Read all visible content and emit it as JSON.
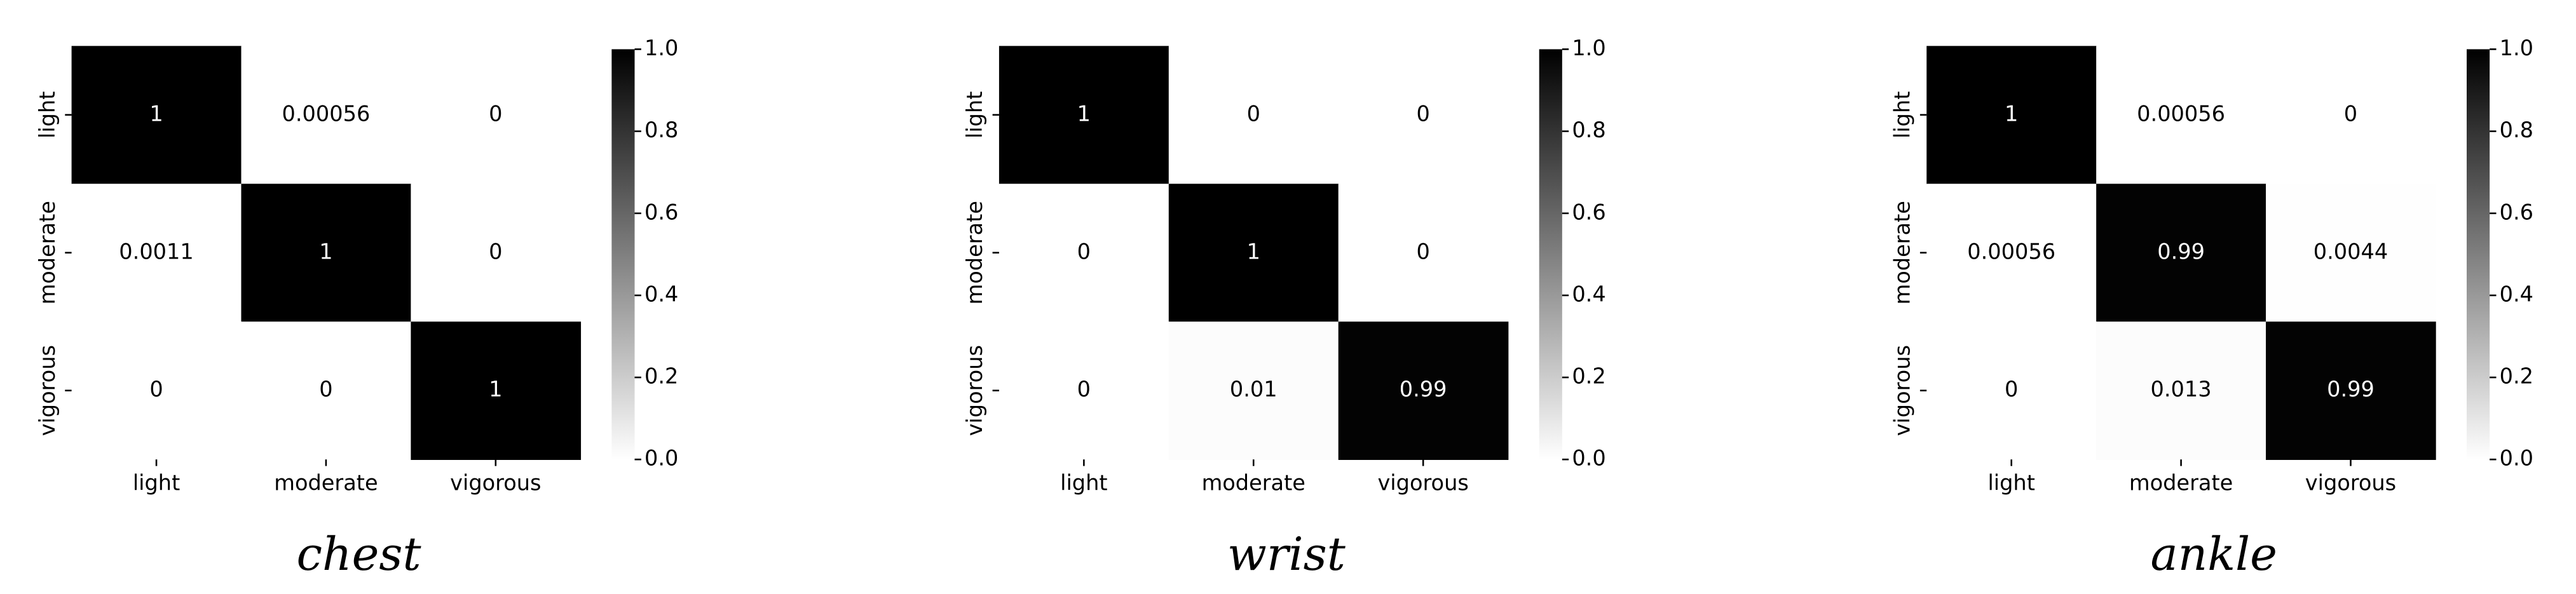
{
  "chart_data": [
    {
      "type": "heatmap",
      "title": "chest",
      "x_categories": [
        "light",
        "moderate",
        "vigorous"
      ],
      "y_categories": [
        "light",
        "moderate",
        "vigorous"
      ],
      "values": [
        [
          1,
          0.00056,
          0
        ],
        [
          0.0011,
          1,
          0
        ],
        [
          0,
          0,
          1
        ]
      ],
      "clim": [
        0,
        1
      ],
      "colors": [
        "#ffffff",
        "#000000"
      ],
      "cticks": [
        {
          "value": 0,
          "label": "0.0"
        },
        {
          "value": 0.2,
          "label": "0.2"
        },
        {
          "value": 0.4,
          "label": "0.4"
        },
        {
          "value": 0.6,
          "label": "0.6"
        },
        {
          "value": 0.8,
          "label": "0.8"
        },
        {
          "value": 1,
          "label": "1.0"
        }
      ]
    },
    {
      "type": "heatmap",
      "title": "wrist",
      "x_categories": [
        "light",
        "moderate",
        "vigorous"
      ],
      "y_categories": [
        "light",
        "moderate",
        "vigorous"
      ],
      "values": [
        [
          1,
          0,
          0
        ],
        [
          0,
          1,
          0
        ],
        [
          0,
          0.01,
          0.99
        ]
      ],
      "clim": [
        0,
        1
      ],
      "colors": [
        "#ffffff",
        "#000000"
      ],
      "cticks": [
        {
          "value": 0,
          "label": "0.0"
        },
        {
          "value": 0.2,
          "label": "0.2"
        },
        {
          "value": 0.4,
          "label": "0.4"
        },
        {
          "value": 0.6,
          "label": "0.6"
        },
        {
          "value": 0.8,
          "label": "0.8"
        },
        {
          "value": 1,
          "label": "1.0"
        }
      ]
    },
    {
      "type": "heatmap",
      "title": "ankle",
      "x_categories": [
        "light",
        "moderate",
        "vigorous"
      ],
      "y_categories": [
        "light",
        "moderate",
        "vigorous"
      ],
      "values": [
        [
          1,
          0.00056,
          0
        ],
        [
          0.00056,
          0.99,
          0.0044
        ],
        [
          0,
          0.013,
          0.99
        ]
      ],
      "clim": [
        0,
        1
      ],
      "colors": [
        "#ffffff",
        "#000000"
      ],
      "cticks": [
        {
          "value": 0,
          "label": "0.0"
        },
        {
          "value": 0.2,
          "label": "0.2"
        },
        {
          "value": 0.4,
          "label": "0.4"
        },
        {
          "value": 0.6,
          "label": "0.6"
        },
        {
          "value": 0.8,
          "label": "0.8"
        },
        {
          "value": 1,
          "label": "1.0"
        }
      ]
    }
  ]
}
